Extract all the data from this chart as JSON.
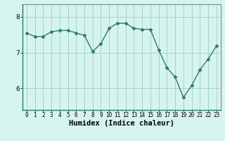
{
  "x": [
    0,
    1,
    2,
    3,
    4,
    5,
    6,
    7,
    8,
    9,
    10,
    11,
    12,
    13,
    14,
    15,
    16,
    17,
    18,
    19,
    20,
    21,
    22,
    23
  ],
  "y": [
    7.55,
    7.45,
    7.45,
    7.58,
    7.62,
    7.62,
    7.55,
    7.48,
    7.03,
    7.25,
    7.68,
    7.82,
    7.82,
    7.68,
    7.65,
    7.65,
    7.08,
    6.58,
    6.32,
    5.75,
    6.08,
    6.52,
    6.82,
    7.18
  ],
  "line_color": "#2d7b6e",
  "marker": "D",
  "markersize": 2.5,
  "linewidth": 1.0,
  "bg_color": "#d6f4ef",
  "grid_color": "#a0cccc",
  "xlabel": "Humidex (Indice chaleur)",
  "xlabel_fontsize": 7.5,
  "yticks": [
    6,
    7,
    8
  ],
  "ylim": [
    5.4,
    8.35
  ],
  "xlim": [
    -0.5,
    23.5
  ],
  "xticks": [
    0,
    1,
    2,
    3,
    4,
    5,
    6,
    7,
    8,
    9,
    10,
    11,
    12,
    13,
    14,
    15,
    16,
    17,
    18,
    19,
    20,
    21,
    22,
    23
  ],
  "tick_fontsize": 5.5
}
